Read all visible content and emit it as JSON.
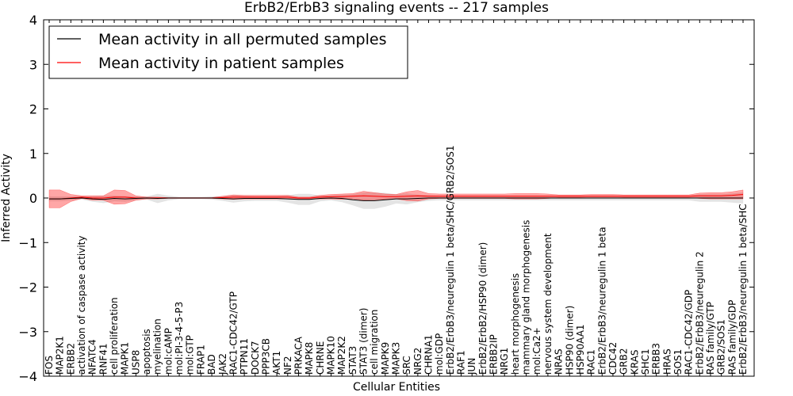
{
  "chart_data": {
    "type": "line",
    "title": "ErbB2/ErbB3 signaling events -- 217 samples",
    "xlabel": "Cellular Entities",
    "ylabel": "Inferred Activity",
    "ylim": [
      -4,
      4
    ],
    "yticks": [
      -4,
      -3,
      -2,
      -1,
      0,
      1,
      2,
      3,
      4
    ],
    "ytick_labels": [
      "−4",
      "−3",
      "−2",
      "−1",
      "0",
      "1",
      "2",
      "3",
      "4"
    ],
    "legend_position": "top-left",
    "grid": false,
    "categories": [
      "FOS",
      "MAP2K1",
      "ERBB2",
      "activation of caspase activity",
      "NFATC4",
      "RNF41",
      "cell proliferation",
      "MAPK1",
      "USP8",
      "apoptosis",
      "myelination",
      "mol:cAMP",
      "mol:PI-3-4-5-P3",
      "mol:GTP",
      "FRAP1",
      "BAD",
      "JAK2",
      "RAC1-CDC42/GTP",
      "PTPN11",
      "DOCK7",
      "PPP3CB",
      "AKT1",
      "NF2",
      "PRKACA",
      "MAPK8",
      "CHRNE",
      "MAPK10",
      "MAP2K2",
      "STAT3",
      "STAT3 (dimer)",
      "cell migration",
      "MAPK9",
      "MAPK3",
      "SRC",
      "NRG2",
      "CHRNA1",
      "mol:GDP",
      "ErbB2/ErbB3/neuregulin 1 beta/SHC/GRB2/SOS1",
      "RAF1",
      "JUN",
      "ErbB2/ErbB2/HSP90 (dimer)",
      "ERBB2IP",
      "NRG1",
      "heart morphogenesis",
      "mammary gland morphogenesis",
      "mol:Ca2+",
      "nervous system development",
      "NRAS",
      "HSP90 (dimer)",
      "HSP90AA1",
      "RAC1",
      "ErbB2/ErbB3/neuregulin 1 beta",
      "CDC42",
      "GRB2",
      "KRAS",
      "SHC1",
      "ERBB3",
      "HRAS",
      "SOS1",
      "RAC1-CDC42/GDP",
      "ErbB2/ErbB3/neuregulin 2",
      "RAS family/GTP",
      "GRB2/SOS1",
      "RAS family/GDP",
      "ErbB2/ErbB3/neuregulin 1 beta/SHC"
    ],
    "series": [
      {
        "name": "Mean activity in all permuted samples",
        "color": "#000000",
        "values": [
          -0.02,
          -0.02,
          -0.01,
          0.0,
          -0.02,
          -0.03,
          -0.01,
          -0.02,
          -0.01,
          0.0,
          -0.01,
          0.0,
          0.0,
          0.0,
          0.0,
          0.0,
          -0.01,
          -0.02,
          -0.01,
          -0.01,
          -0.01,
          -0.01,
          -0.02,
          -0.03,
          -0.03,
          -0.01,
          0.0,
          -0.01,
          -0.04,
          -0.06,
          -0.06,
          -0.04,
          -0.02,
          -0.02,
          -0.01,
          0.0,
          0.0,
          0.0,
          0.0,
          0.0,
          0.0,
          0.0,
          0.0,
          0.0,
          0.0,
          0.0,
          0.0,
          0.0,
          0.0,
          0.0,
          0.0,
          0.0,
          0.0,
          0.0,
          0.0,
          0.0,
          0.0,
          0.0,
          0.0,
          0.0,
          0.0,
          0.0,
          0.0,
          0.0,
          0.0
        ],
        "band": [
          0.05,
          0.05,
          0.04,
          0.03,
          0.06,
          0.08,
          0.06,
          0.06,
          0.04,
          0.03,
          0.1,
          0.05,
          0.02,
          0.02,
          0.02,
          0.03,
          0.05,
          0.08,
          0.06,
          0.05,
          0.05,
          0.05,
          0.08,
          0.12,
          0.12,
          0.06,
          0.05,
          0.08,
          0.12,
          0.18,
          0.18,
          0.15,
          0.1,
          0.12,
          0.08,
          0.06,
          0.05,
          0.05,
          0.05,
          0.05,
          0.05,
          0.05,
          0.05,
          0.05,
          0.05,
          0.05,
          0.05,
          0.05,
          0.05,
          0.05,
          0.05,
          0.05,
          0.05,
          0.05,
          0.05,
          0.05,
          0.05,
          0.05,
          0.05,
          0.05,
          0.08,
          0.08,
          0.08,
          0.1,
          0.12
        ]
      },
      {
        "name": "Mean activity in patient samples",
        "color": "#ff0000",
        "values": [
          -0.02,
          -0.02,
          0.0,
          0.02,
          0.0,
          0.0,
          0.02,
          0.02,
          0.0,
          0.0,
          0.0,
          0.0,
          0.0,
          0.0,
          0.0,
          0.0,
          0.01,
          0.02,
          0.02,
          0.02,
          0.02,
          0.02,
          0.02,
          0.0,
          0.0,
          0.02,
          0.03,
          0.03,
          0.04,
          0.05,
          0.04,
          0.03,
          0.03,
          0.04,
          0.05,
          0.04,
          0.04,
          0.04,
          0.04,
          0.04,
          0.04,
          0.04,
          0.04,
          0.04,
          0.04,
          0.04,
          0.04,
          0.04,
          0.04,
          0.04,
          0.04,
          0.04,
          0.04,
          0.04,
          0.04,
          0.04,
          0.04,
          0.04,
          0.04,
          0.04,
          0.05,
          0.05,
          0.05,
          0.06,
          0.08
        ],
        "band": [
          0.2,
          0.2,
          0.08,
          0.03,
          0.05,
          0.05,
          0.16,
          0.15,
          0.05,
          0.02,
          0.02,
          0.01,
          0.01,
          0.01,
          0.01,
          0.01,
          0.03,
          0.05,
          0.04,
          0.04,
          0.04,
          0.04,
          0.04,
          0.02,
          0.02,
          0.04,
          0.05,
          0.06,
          0.06,
          0.1,
          0.08,
          0.06,
          0.05,
          0.1,
          0.12,
          0.06,
          0.05,
          0.05,
          0.05,
          0.05,
          0.05,
          0.05,
          0.05,
          0.06,
          0.06,
          0.06,
          0.05,
          0.03,
          0.03,
          0.03,
          0.04,
          0.04,
          0.04,
          0.03,
          0.03,
          0.03,
          0.03,
          0.03,
          0.03,
          0.03,
          0.06,
          0.07,
          0.07,
          0.08,
          0.1
        ]
      }
    ]
  }
}
